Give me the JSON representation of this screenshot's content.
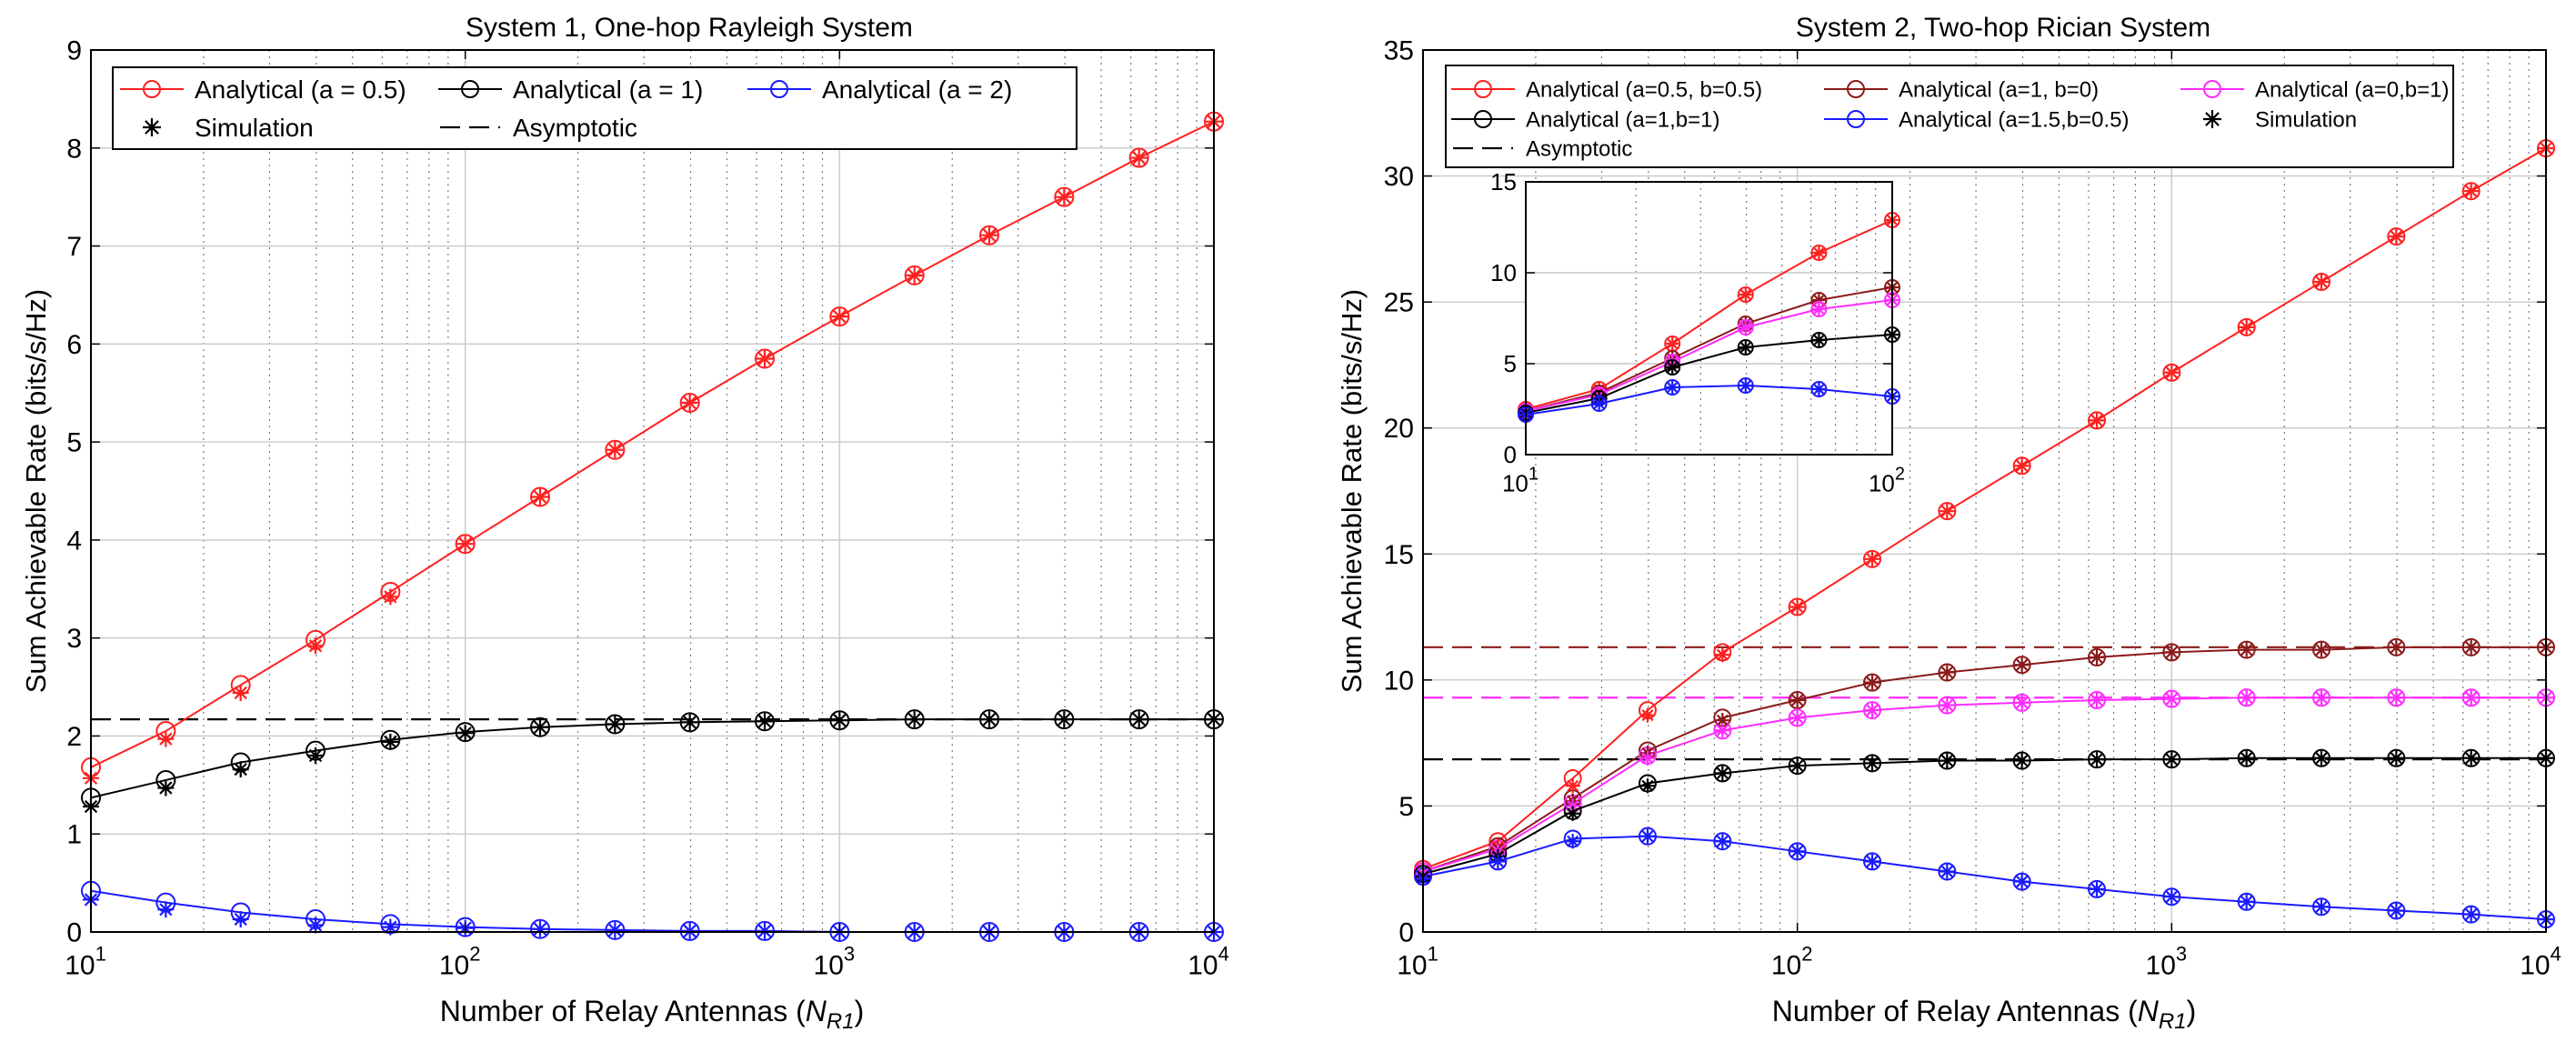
{
  "colors": {
    "red": "#ff2020",
    "black": "#000000",
    "blue": "#1a1aff",
    "darkred": "#8b1a1a",
    "magenta": "#ff2bff"
  },
  "chart_data": [
    {
      "type": "line",
      "title": "System 1, One-hop Rayleigh System",
      "xlabel_main": "Number of Relay Antennas (",
      "xlabel_var": "N",
      "xlabel_sub": "R1",
      "xlabel_close": ")",
      "ylabel": "Sum Achievable Rate (bits/s/Hz)",
      "xscale": "log",
      "xlim": [
        10,
        10000
      ],
      "ylim": [
        0,
        9
      ],
      "yticks": [
        "0",
        "1",
        "2",
        "3",
        "4",
        "5",
        "6",
        "7",
        "8",
        "9"
      ],
      "xticks": [
        {
          "base": "10",
          "exp": "1"
        },
        {
          "base": "10",
          "exp": "2"
        },
        {
          "base": "10",
          "exp": "3"
        },
        {
          "base": "10",
          "exp": "4"
        }
      ],
      "legend": [
        {
          "label": "Analytical (a = 0.5)",
          "kind": "line-circle",
          "color": "red"
        },
        {
          "label": "Analytical (a = 1)",
          "kind": "line-circle",
          "color": "black"
        },
        {
          "label": "Analytical (a = 2)",
          "kind": "line-circle",
          "color": "blue"
        },
        {
          "label": "Simulation",
          "kind": "star",
          "color": "black"
        },
        {
          "label": "Asymptotic",
          "kind": "dash",
          "color": "black"
        }
      ],
      "x": [
        10,
        15.85,
        25.12,
        39.81,
        63.1,
        100,
        158.5,
        251.2,
        398.1,
        631,
        1000,
        1585,
        2512,
        3981,
        6310,
        10000
      ],
      "series": [
        {
          "name": "Analytical (a = 0.5)",
          "color": "red",
          "values": [
            1.68,
            2.05,
            2.52,
            2.98,
            3.47,
            3.96,
            4.44,
            4.92,
            5.4,
            5.85,
            6.28,
            6.7,
            7.11,
            7.5,
            7.9,
            8.27
          ]
        },
        {
          "name": "Analytical (a = 1)",
          "color": "black",
          "values": [
            1.37,
            1.55,
            1.73,
            1.85,
            1.96,
            2.04,
            2.09,
            2.12,
            2.14,
            2.15,
            2.16,
            2.17,
            2.17,
            2.17,
            2.17,
            2.17
          ]
        },
        {
          "name": "Analytical (a = 2)",
          "color": "blue",
          "values": [
            0.42,
            0.3,
            0.2,
            0.13,
            0.08,
            0.05,
            0.03,
            0.02,
            0.01,
            0.01,
            0.0,
            0.0,
            0.0,
            0.0,
            0.0,
            0.0
          ]
        }
      ],
      "simulation": [
        {
          "name": "Simulation (a = 0.5)",
          "color": "red",
          "values": [
            1.57,
            1.97,
            2.44,
            2.92,
            3.42,
            3.96,
            4.44,
            4.92,
            5.4,
            5.85,
            6.28,
            6.7,
            7.11,
            7.5,
            7.9,
            8.27
          ]
        },
        {
          "name": "Simulation (a = 1)",
          "color": "black",
          "values": [
            1.28,
            1.47,
            1.66,
            1.8,
            1.94,
            2.03,
            2.09,
            2.12,
            2.14,
            2.15,
            2.16,
            2.17,
            2.17,
            2.17,
            2.17,
            2.17
          ]
        },
        {
          "name": "Simulation (a = 2)",
          "color": "blue",
          "values": [
            0.33,
            0.23,
            0.13,
            0.07,
            0.05,
            0.04,
            0.03,
            0.02,
            0.01,
            0.01,
            0.0,
            0.0,
            0.0,
            0.0,
            0.0,
            0.0
          ]
        }
      ],
      "asymptotes": [
        {
          "color": "black",
          "value": 2.17
        }
      ]
    },
    {
      "type": "line",
      "title": "System 2, Two-hop Rician System",
      "xlabel_main": "Number of Relay Antennas (",
      "xlabel_var": "N",
      "xlabel_sub": "R1",
      "xlabel_close": ")",
      "ylabel": "Sum Achievable Rate (bits/s/Hz)",
      "xscale": "log",
      "xlim": [
        10,
        10000
      ],
      "ylim": [
        0,
        35
      ],
      "yticks": [
        "0",
        "5",
        "10",
        "15",
        "20",
        "25",
        "30",
        "35"
      ],
      "xticks": [
        {
          "base": "10",
          "exp": "1"
        },
        {
          "base": "10",
          "exp": "2"
        },
        {
          "base": "10",
          "exp": "3"
        },
        {
          "base": "10",
          "exp": "4"
        }
      ],
      "legend": [
        {
          "label": "Analytical (a=0.5, b=0.5)",
          "kind": "line-circle",
          "color": "red"
        },
        {
          "label": "Analytical (a=1, b=0)",
          "kind": "line-circle",
          "color": "darkred"
        },
        {
          "label": "Analytical (a=0,b=1)",
          "kind": "line-circle",
          "color": "magenta"
        },
        {
          "label": "Analytical (a=1,b=1)",
          "kind": "line-circle",
          "color": "black"
        },
        {
          "label": "Analytical (a=1.5,b=0.5)",
          "kind": "line-circle",
          "color": "blue"
        },
        {
          "label": "Simulation",
          "kind": "star",
          "color": "black"
        },
        {
          "label": "Asymptotic",
          "kind": "dash",
          "color": "black"
        }
      ],
      "x": [
        10,
        15.85,
        25.12,
        39.81,
        63.1,
        100,
        158.5,
        251.2,
        398.1,
        631,
        1000,
        1585,
        2512,
        3981,
        6310,
        10000
      ],
      "series": [
        {
          "name": "Analytical (a=0.5, b=0.5)",
          "color": "red",
          "values": [
            2.5,
            3.6,
            6.1,
            8.8,
            11.1,
            12.9,
            14.8,
            16.7,
            18.5,
            20.3,
            22.2,
            24.0,
            25.8,
            27.6,
            29.4,
            31.1
          ]
        },
        {
          "name": "Analytical (a=1, b=0)",
          "color": "darkred",
          "values": [
            2.4,
            3.4,
            5.3,
            7.2,
            8.5,
            9.2,
            9.9,
            10.3,
            10.6,
            10.9,
            11.1,
            11.2,
            11.2,
            11.3,
            11.3,
            11.3
          ]
        },
        {
          "name": "Analytical (a=0,b=1)",
          "color": "magenta",
          "values": [
            2.4,
            3.3,
            5.1,
            7.0,
            8.0,
            8.5,
            8.8,
            9.0,
            9.1,
            9.2,
            9.25,
            9.3,
            9.3,
            9.3,
            9.3,
            9.3
          ]
        },
        {
          "name": "Analytical (a=1,b=1)",
          "color": "black",
          "values": [
            2.3,
            3.1,
            4.8,
            5.9,
            6.3,
            6.6,
            6.7,
            6.8,
            6.8,
            6.85,
            6.85,
            6.9,
            6.9,
            6.9,
            6.9,
            6.9
          ]
        },
        {
          "name": "Analytical (a=1.5,b=0.5)",
          "color": "blue",
          "values": [
            2.2,
            2.8,
            3.7,
            3.8,
            3.6,
            3.2,
            2.8,
            2.4,
            2.0,
            1.7,
            1.4,
            1.2,
            1.0,
            0.85,
            0.7,
            0.5
          ]
        }
      ],
      "simulation": [
        {
          "name": "Simulation (a=0.5, b=0.5)",
          "color": "red",
          "values": [
            2.3,
            3.4,
            5.8,
            8.6,
            11.0,
            12.9,
            14.8,
            16.7,
            18.5,
            20.3,
            22.2,
            24.0,
            25.8,
            27.6,
            29.4,
            31.1
          ]
        },
        {
          "name": "Simulation (a=1, b=0)",
          "color": "darkred",
          "values": [
            2.3,
            3.3,
            5.2,
            7.1,
            8.4,
            9.2,
            9.9,
            10.3,
            10.6,
            10.9,
            11.1,
            11.2,
            11.2,
            11.3,
            11.3,
            11.3
          ]
        },
        {
          "name": "Simulation (a=0,b=1)",
          "color": "magenta",
          "values": [
            2.3,
            3.2,
            5.0,
            6.9,
            8.0,
            8.5,
            8.8,
            9.0,
            9.1,
            9.2,
            9.25,
            9.3,
            9.3,
            9.3,
            9.3,
            9.3
          ]
        },
        {
          "name": "Simulation (a=1,b=1)",
          "color": "black",
          "values": [
            2.2,
            3.0,
            4.7,
            5.8,
            6.3,
            6.6,
            6.7,
            6.8,
            6.8,
            6.85,
            6.85,
            6.9,
            6.9,
            6.9,
            6.9,
            6.9
          ]
        },
        {
          "name": "Simulation (a=1.5,b=0.5)",
          "color": "blue",
          "values": [
            2.1,
            2.8,
            3.6,
            3.8,
            3.6,
            3.2,
            2.8,
            2.4,
            2.0,
            1.7,
            1.4,
            1.2,
            1.0,
            0.85,
            0.7,
            0.5
          ]
        }
      ],
      "asymptotes": [
        {
          "color": "darkred",
          "value": 11.3
        },
        {
          "color": "magenta",
          "value": 9.3
        },
        {
          "color": "black",
          "value": 6.85
        }
      ],
      "inset": {
        "xlim": [
          10,
          100
        ],
        "ylim": [
          0,
          15
        ],
        "yticks": [
          "0",
          "5",
          "10",
          "15"
        ],
        "xticks": [
          {
            "base": "10",
            "exp": "1"
          },
          {
            "base": "10",
            "exp": "2"
          }
        ],
        "x": [
          10,
          15.85,
          25.12,
          39.81,
          63.1,
          100
        ],
        "series": [
          {
            "color": "red",
            "values": [
              2.5,
              3.6,
              6.1,
              8.8,
              11.1,
              12.9
            ]
          },
          {
            "color": "darkred",
            "values": [
              2.4,
              3.4,
              5.3,
              7.2,
              8.5,
              9.2
            ]
          },
          {
            "color": "magenta",
            "values": [
              2.4,
              3.3,
              5.1,
              7.0,
              8.0,
              8.5
            ]
          },
          {
            "color": "black",
            "values": [
              2.3,
              3.1,
              4.8,
              5.9,
              6.3,
              6.6
            ]
          },
          {
            "color": "blue",
            "values": [
              2.2,
              2.8,
              3.7,
              3.8,
              3.6,
              3.2
            ]
          }
        ]
      }
    }
  ]
}
